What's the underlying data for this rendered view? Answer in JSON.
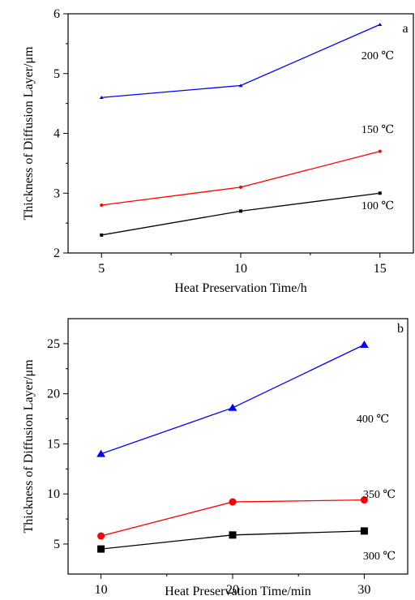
{
  "chart_data": [
    {
      "type": "line",
      "panel_label": "a",
      "xlabel": "Heat Preservation Time/h",
      "ylabel": "Thickness of Diffusion Layer/μm",
      "xlim": [
        3.8,
        16.2
      ],
      "ylim": [
        2,
        6
      ],
      "x": [
        5,
        10,
        15
      ],
      "xticks": [
        5,
        10,
        15
      ],
      "yticks": [
        2,
        3,
        4,
        5,
        6
      ],
      "grid": false,
      "series": [
        {
          "name": "200 ℃",
          "color": "#0000ff",
          "marker": "triangle",
          "values": [
            4.6,
            4.8,
            5.82
          ]
        },
        {
          "name": "150 ℃",
          "color": "#ff0000",
          "marker": "circle",
          "values": [
            2.8,
            3.1,
            3.7
          ]
        },
        {
          "name": "100 ℃",
          "color": "#000000",
          "marker": "square",
          "values": [
            2.3,
            2.7,
            3.0
          ]
        }
      ]
    },
    {
      "type": "line",
      "panel_label": "b",
      "xlabel": "Heat Preservation Time/min",
      "ylabel": "Thickness of Diffusion Layer/μm",
      "xlim": [
        7.5,
        33.3
      ],
      "ylim": [
        2,
        27.5
      ],
      "x": [
        10,
        20,
        30
      ],
      "xticks": [
        10,
        20,
        30
      ],
      "yticks": [
        5,
        10,
        15,
        20,
        25
      ],
      "grid": false,
      "series": [
        {
          "name": "400 ℃",
          "color": "#0000ff",
          "marker": "triangle",
          "values": [
            14.0,
            18.6,
            24.9
          ]
        },
        {
          "name": "350 ℃",
          "color": "#ff0000",
          "marker": "circle",
          "values": [
            5.8,
            9.2,
            9.4
          ]
        },
        {
          "name": "300 ℃",
          "color": "#000000",
          "marker": "square",
          "values": [
            4.5,
            5.9,
            6.3
          ]
        }
      ]
    }
  ]
}
